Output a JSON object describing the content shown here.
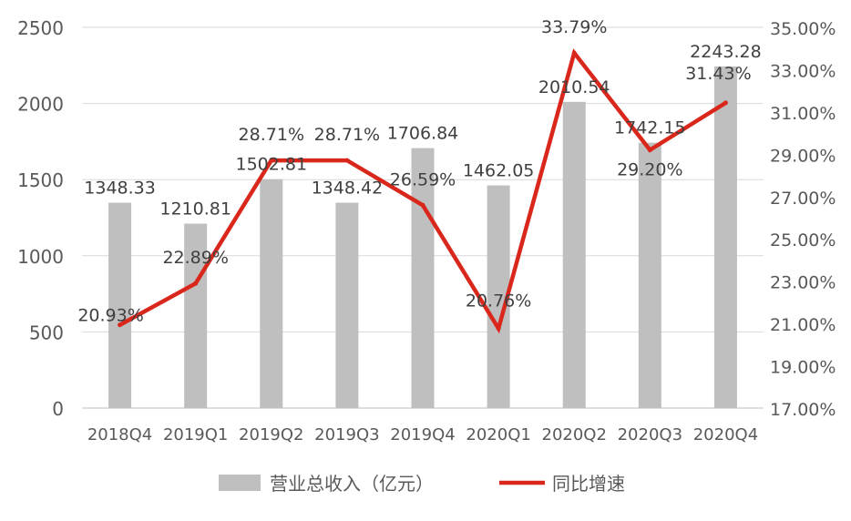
{
  "chart_data": {
    "type": "bar",
    "categories": [
      "2018Q4",
      "2019Q1",
      "2019Q2",
      "2019Q3",
      "2019Q4",
      "2020Q1",
      "2020Q2",
      "2020Q3",
      "2020Q4"
    ],
    "series": [
      {
        "name": "营业总收入（亿元）",
        "type": "bar",
        "axis": "left",
        "color": "#bfbfbf",
        "values": [
          1348.33,
          1210.81,
          1502.81,
          1348.42,
          1706.84,
          1462.05,
          2010.54,
          1742.15,
          2243.28
        ],
        "labels": [
          "1348.33",
          "1210.81",
          "1502.81",
          "1348.42",
          "1706.84",
          "1462.05",
          "2010.54",
          "1742.15",
          "2243.28"
        ]
      },
      {
        "name": "同比增速",
        "type": "line",
        "axis": "right",
        "color": "#d9271c",
        "values": [
          20.93,
          22.89,
          28.71,
          28.71,
          26.59,
          20.76,
          33.79,
          29.2,
          31.43
        ],
        "labels": [
          "20.93%",
          "22.89%",
          "28.71%",
          "28.71%",
          "26.59%",
          "20.76%",
          "33.79%",
          "29.20%",
          "31.43%"
        ]
      }
    ],
    "y_left": {
      "ylim": [
        0,
        2500
      ],
      "ticks": [
        "0",
        "500",
        "1000",
        "1500",
        "2000",
        "2500"
      ]
    },
    "y_right": {
      "ylim": [
        17,
        35
      ],
      "ticks": [
        "17.00%",
        "19.00%",
        "21.00%",
        "23.00%",
        "25.00%",
        "27.00%",
        "29.00%",
        "31.00%",
        "33.00%",
        "35.00%"
      ]
    },
    "grid": "horizontal",
    "legend": {
      "position": "bottom",
      "items": [
        "营业总收入（亿元）",
        "同比增速"
      ]
    },
    "title": "",
    "xlabel": "",
    "ylabel": ""
  }
}
